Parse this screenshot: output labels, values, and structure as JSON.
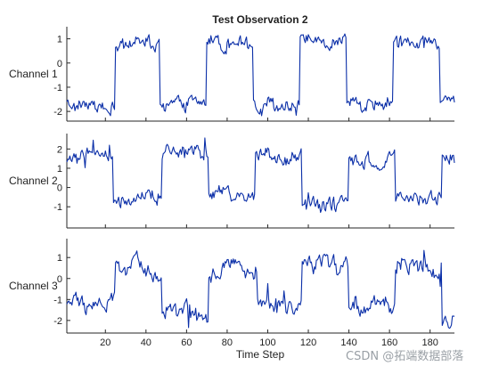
{
  "chart_data": {
    "type": "line",
    "title": "Test Observation 2",
    "xlabel": "Time Step",
    "xlim": [
      1,
      192
    ],
    "x_ticks": [
      20,
      40,
      60,
      80,
      100,
      120,
      140,
      160,
      180
    ],
    "line_color": "#0b2fa8",
    "series": [
      {
        "name": "Channel 1",
        "ylim": [
          -2.4,
          1.5
        ],
        "y_ticks": [
          1,
          0,
          -1,
          -2
        ],
        "segments": [
          {
            "x_start": 1,
            "x_end": 25,
            "level": -1.7
          },
          {
            "x_start": 25,
            "x_end": 47,
            "level": 0.8
          },
          {
            "x_start": 47,
            "x_end": 70,
            "level": -1.7
          },
          {
            "x_start": 70,
            "x_end": 93,
            "level": 0.8
          },
          {
            "x_start": 93,
            "x_end": 116,
            "level": -1.7
          },
          {
            "x_start": 116,
            "x_end": 139,
            "level": 0.8
          },
          {
            "x_start": 139,
            "x_end": 162,
            "level": -1.7
          },
          {
            "x_start": 162,
            "x_end": 185,
            "level": 0.8
          },
          {
            "x_start": 185,
            "x_end": 192,
            "level": -1.7
          }
        ],
        "noise": 0.25
      },
      {
        "name": "Channel 2",
        "ylim": [
          -2.1,
          2.8
        ],
        "y_ticks": [
          2,
          1,
          0,
          -1
        ],
        "segments": [
          {
            "x_start": 1,
            "x_end": 24,
            "level": 1.6
          },
          {
            "x_start": 24,
            "x_end": 48,
            "level": -0.6
          },
          {
            "x_start": 48,
            "x_end": 71,
            "level": 1.7
          },
          {
            "x_start": 71,
            "x_end": 94,
            "level": -0.5
          },
          {
            "x_start": 94,
            "x_end": 117,
            "level": 1.6
          },
          {
            "x_start": 117,
            "x_end": 140,
            "level": -0.8
          },
          {
            "x_start": 140,
            "x_end": 163,
            "level": 1.5
          },
          {
            "x_start": 163,
            "x_end": 186,
            "level": -0.6
          },
          {
            "x_start": 186,
            "x_end": 192,
            "level": 1.5
          }
        ],
        "noise": 0.35
      },
      {
        "name": "Channel 3",
        "ylim": [
          -2.6,
          1.9
        ],
        "y_ticks": [
          1,
          0,
          -1,
          -2
        ],
        "segments": [
          {
            "x_start": 1,
            "x_end": 25,
            "level": -1.2
          },
          {
            "x_start": 25,
            "x_end": 48,
            "level": 0.5
          },
          {
            "x_start": 48,
            "x_end": 71,
            "level": -1.5
          },
          {
            "x_start": 71,
            "x_end": 95,
            "level": 0.4
          },
          {
            "x_start": 95,
            "x_end": 117,
            "level": -1.4
          },
          {
            "x_start": 117,
            "x_end": 140,
            "level": 0.5
          },
          {
            "x_start": 140,
            "x_end": 163,
            "level": -1.3
          },
          {
            "x_start": 163,
            "x_end": 186,
            "level": 0.6
          },
          {
            "x_start": 186,
            "x_end": 192,
            "level": -1.9
          }
        ],
        "noise": 0.4
      }
    ]
  },
  "watermark": {
    "text": "CSDN @拓端数据部落"
  }
}
